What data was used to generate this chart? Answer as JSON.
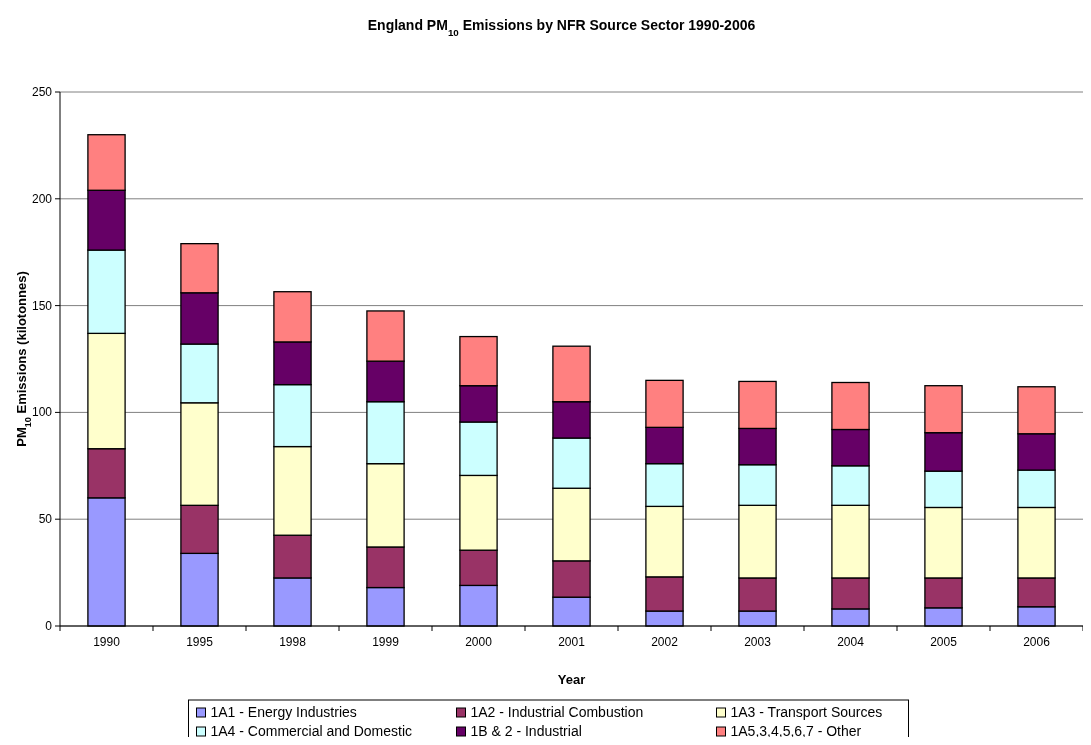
{
  "chart_data": {
    "type": "bar",
    "stacked": true,
    "title": "England PM$_{10}$ Emissions by NFR Source Sector 1990-2006",
    "xlabel": "Year",
    "ylabel": "PM$_{10}$ Emissions (kilotonnes)",
    "categories": [
      "1990",
      "1995",
      "1998",
      "1999",
      "2000",
      "2001",
      "2002",
      "2003",
      "2004",
      "2005",
      "2006"
    ],
    "series": [
      {
        "name": "1A1 - Energy Industries",
        "color": "#9999ff",
        "values": [
          60,
          34,
          22.5,
          18,
          19,
          13.5,
          7,
          7,
          8,
          8.5,
          9
        ]
      },
      {
        "name": "1A2 - Industrial Combustion",
        "color": "#993366",
        "values": [
          23,
          22.5,
          20,
          19,
          16.5,
          17,
          16,
          15.5,
          14.5,
          14,
          13.5
        ]
      },
      {
        "name": "1A3 - Transport Sources",
        "color": "#ffffcc",
        "values": [
          54,
          48,
          41.5,
          39,
          35,
          34,
          33,
          34,
          34,
          33,
          33
        ]
      },
      {
        "name": "1A4 - Commercial and Domestic",
        "color": "#ccffff",
        "values": [
          39,
          27.5,
          29,
          29,
          25,
          23.5,
          20,
          19,
          18.5,
          17,
          17.5
        ]
      },
      {
        "name": "1B & 2 - Industrial",
        "color": "#660066",
        "values": [
          28,
          24,
          20,
          19,
          17,
          17,
          17,
          17,
          17,
          18,
          17
        ]
      },
      {
        "name": "1A5,3,4,5,6,7 - Other",
        "color": "#ff8080",
        "values": [
          26,
          23,
          23.5,
          23.5,
          23,
          26,
          22,
          22,
          22,
          22,
          22
        ]
      }
    ],
    "ylim": [
      0,
      250
    ],
    "yticks": [
      0,
      50,
      100,
      150,
      200,
      250
    ],
    "grid": "y",
    "legend": "bottom"
  }
}
